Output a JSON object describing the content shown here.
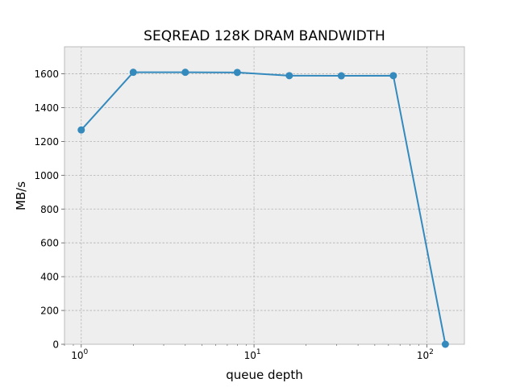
{
  "chart_data": {
    "type": "line",
    "title": "SEQREAD 128K DRAM BANDWIDTH",
    "xlabel": "queue depth",
    "ylabel": "MB/s",
    "x_scale": "log",
    "xlim": [
      0.8,
      165
    ],
    "ylim": [
      0,
      1760
    ],
    "x_ticks": [
      {
        "value": 1,
        "base": "10",
        "exp": "0"
      },
      {
        "value": 10,
        "base": "10",
        "exp": "1"
      },
      {
        "value": 100,
        "base": "10",
        "exp": "2"
      }
    ],
    "y_ticks": [
      0,
      200,
      400,
      600,
      800,
      1000,
      1200,
      1400,
      1600
    ],
    "grid": true,
    "series": [
      {
        "x": [
          1,
          2,
          4,
          8,
          16,
          32,
          64,
          128
        ],
        "values": [
          1268,
          1609,
          1609,
          1608,
          1589,
          1588,
          1589,
          0
        ],
        "color": "#348abd",
        "marker": "circle"
      }
    ],
    "colors": {
      "plot_background": "#eeeeee",
      "grid": "#b2b2b2",
      "axes_edge": "#bcbcbc"
    }
  }
}
